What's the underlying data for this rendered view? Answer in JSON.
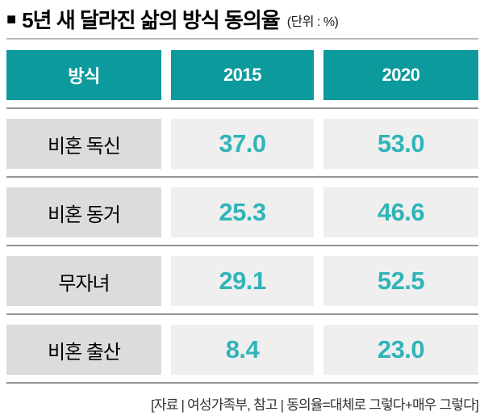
{
  "title": {
    "bullet": "■",
    "text": "5년 새 달라진 삶의 방식 동의율",
    "unit": "(단위 : %)"
  },
  "table": {
    "columns": [
      "방식",
      "2015",
      "2020"
    ],
    "rows": [
      {
        "label": "비혼 독신",
        "y2015": "37.0",
        "y2020": "53.0"
      },
      {
        "label": "비혼 동거",
        "y2015": "25.3",
        "y2020": "46.6"
      },
      {
        "label": "무자녀",
        "y2015": "29.1",
        "y2020": "52.5"
      },
      {
        "label": "비혼 출산",
        "y2015": "8.4",
        "y2020": "23.0"
      }
    ]
  },
  "footer": {
    "source": "[자료 | 여성가족부, 참고 | 동의율=대체로 그렇다+매우 그렇다]"
  },
  "colors": {
    "header_bg": "#0d9a9c",
    "value_text": "#31b4b8",
    "label_bg": "#dcdcdc",
    "value_bg": "#efefef",
    "row_divider": "#949494",
    "title_rule": "#b9b9b9"
  },
  "chart_data": {
    "type": "table",
    "title": "5년 새 달라진 삶의 방식 동의율",
    "unit": "%",
    "column_headers": [
      "방식",
      "2015",
      "2020"
    ],
    "categories": [
      "비혼 독신",
      "비혼 동거",
      "무자녀",
      "비혼 출산"
    ],
    "series": [
      {
        "name": "2015",
        "values": [
          37.0,
          25.3,
          29.1,
          8.4
        ]
      },
      {
        "name": "2020",
        "values": [
          53.0,
          46.6,
          52.5,
          23.0
        ]
      }
    ],
    "source": "자료 | 여성가족부, 참고 | 동의율=대체로 그렇다+매우 그렇다"
  }
}
